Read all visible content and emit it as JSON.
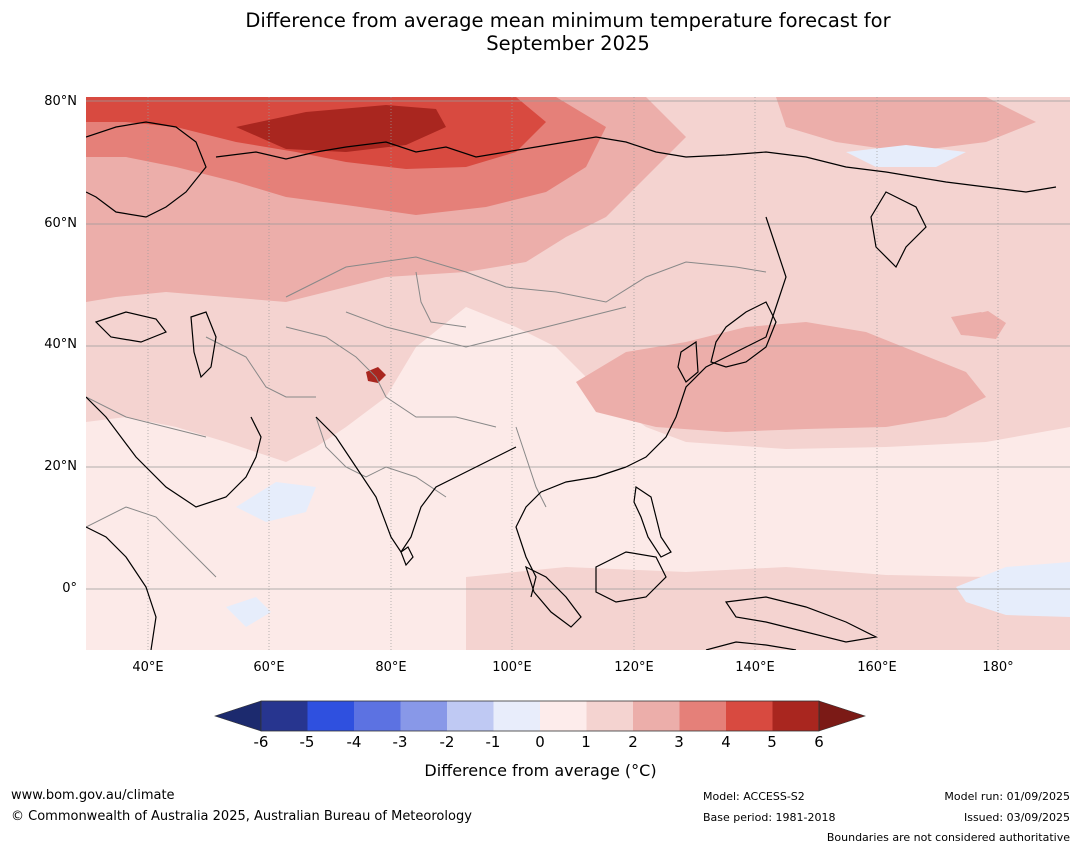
{
  "title": {
    "line1": "Difference from average mean minimum temperature forecast for",
    "line2": "September 2025"
  },
  "map": {
    "lat_labels": [
      "80°N",
      "60°N",
      "40°N",
      "20°N",
      "0°"
    ],
    "lon_labels": [
      "40°E",
      "60°E",
      "80°E",
      "100°E",
      "120°E",
      "140°E",
      "160°E",
      "180°"
    ],
    "colors": {
      "ocean_base": "#fceae8",
      "lvl_0_1": "#fceae8",
      "lvl_1_2": "#f4d3d0",
      "lvl_2_3": "#ecaeaa",
      "lvl_3_4": "#e58079",
      "lvl_4_5": "#d84a40",
      "lvl_5_6": "#a9261f",
      "lvl_neg1_0": "#e6edfb",
      "coast": "#000000",
      "border": "#888888",
      "grid": "#9a9a9a"
    }
  },
  "colorbar": {
    "ticks": [
      "-6",
      "-5",
      "-4",
      "-3",
      "-2",
      "-1",
      "0",
      "1",
      "2",
      "3",
      "4",
      "5",
      "6"
    ],
    "colors": [
      "#27358f",
      "#2f50df",
      "#5c72e2",
      "#8898e8",
      "#bfc9f3",
      "#e8edfb",
      "#fdeceb",
      "#f4d3d0",
      "#ecaeaa",
      "#e58079",
      "#d84a40",
      "#a9261f"
    ],
    "under_color": "#1c2a6e",
    "over_color": "#7b1a16",
    "label": "Difference from average (°C)"
  },
  "footer": {
    "url": "www.bom.gov.au/climate",
    "copyright": "© Commonwealth of Australia 2025, Australian Bureau of Meteorology",
    "model": "Model: ACCESS-S2",
    "base_period": "Base period: 1981-2018",
    "model_run": "Model run: 01/09/2025",
    "issued": "Issued: 03/09/2025",
    "disclaimer": "Boundaries are not considered authoritative"
  }
}
